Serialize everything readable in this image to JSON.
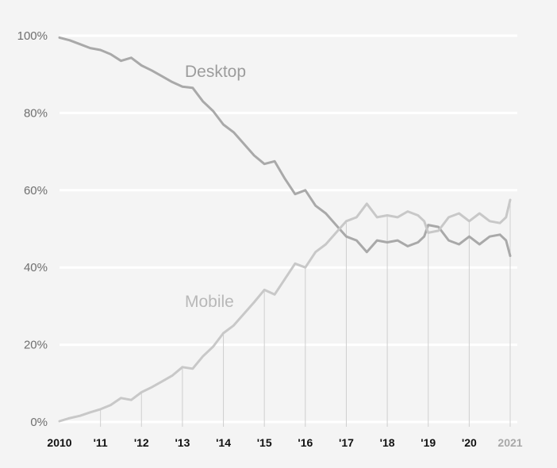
{
  "chart_data": {
    "type": "line",
    "x_tick_labels": [
      "2010",
      "'11",
      "'12",
      "'13",
      "'14",
      "'15",
      "'16",
      "'17",
      "'18",
      "'19",
      "'20",
      "2021"
    ],
    "y_tick_labels": [
      "0%",
      "20%",
      "40%",
      "60%",
      "80%",
      "100%"
    ],
    "ylim": [
      0,
      100
    ],
    "xlim": [
      2010,
      2021
    ],
    "grid": "horizontal",
    "colors": {
      "desktop": "#a9a9a9",
      "mobile": "#c8c8c8",
      "grid": "#ffffff",
      "background": "#f4f4f4",
      "drop_lines": "#cfcfcf"
    },
    "series": [
      {
        "name": "Desktop",
        "x": [
          2010.0,
          2010.25,
          2010.5,
          2010.75,
          2011.0,
          2011.25,
          2011.5,
          2011.75,
          2012.0,
          2012.25,
          2012.5,
          2012.75,
          2013.0,
          2013.25,
          2013.5,
          2013.75,
          2014.0,
          2014.25,
          2014.5,
          2014.75,
          2015.0,
          2015.25,
          2015.5,
          2015.75,
          2016.0,
          2016.25,
          2016.5,
          2016.75,
          2017.0,
          2017.25,
          2017.5,
          2017.75,
          2018.0,
          2018.25,
          2018.5,
          2018.75,
          2018.9,
          2019.0,
          2019.25,
          2019.5,
          2019.75,
          2020.0,
          2020.25,
          2020.5,
          2020.75,
          2020.9,
          2021.0
        ],
        "values": [
          99.5,
          98.8,
          97.8,
          96.8,
          96.3,
          95.2,
          93.5,
          94.3,
          92.3,
          91.0,
          89.5,
          88.0,
          86.8,
          86.5,
          83.0,
          80.5,
          77.0,
          75.0,
          72.0,
          69.0,
          66.8,
          67.5,
          63.0,
          59.0,
          60.0,
          56.0,
          54.0,
          51.0,
          48.0,
          47.0,
          44.0,
          47.0,
          46.5,
          47.0,
          45.5,
          46.5,
          48.0,
          51.0,
          50.5,
          47.0,
          46.0,
          48.0,
          46.0,
          48.0,
          48.5,
          47.0,
          43.0
        ]
      },
      {
        "name": "Mobile",
        "x": [
          2010.0,
          2010.25,
          2010.5,
          2010.75,
          2011.0,
          2011.25,
          2011.5,
          2011.75,
          2012.0,
          2012.25,
          2012.5,
          2012.75,
          2013.0,
          2013.25,
          2013.5,
          2013.75,
          2014.0,
          2014.25,
          2014.5,
          2014.75,
          2015.0,
          2015.25,
          2015.5,
          2015.75,
          2016.0,
          2016.25,
          2016.5,
          2016.75,
          2017.0,
          2017.25,
          2017.5,
          2017.75,
          2018.0,
          2018.25,
          2018.5,
          2018.75,
          2018.9,
          2019.0,
          2019.25,
          2019.5,
          2019.75,
          2020.0,
          2020.25,
          2020.5,
          2020.75,
          2020.9,
          2021.0
        ],
        "values": [
          0.2,
          1.0,
          1.6,
          2.5,
          3.3,
          4.4,
          6.2,
          5.7,
          7.7,
          9.0,
          10.5,
          12.0,
          14.2,
          13.8,
          17.0,
          19.5,
          23.0,
          25.0,
          28.0,
          31.0,
          34.2,
          33.0,
          37.0,
          41.0,
          40.0,
          44.0,
          46.0,
          49.0,
          52.0,
          53.0,
          56.5,
          53.0,
          53.5,
          53.0,
          54.5,
          53.5,
          52.0,
          49.0,
          49.5,
          53.0,
          54.0,
          52.0,
          54.0,
          52.0,
          51.5,
          53.0,
          57.5
        ]
      }
    ]
  }
}
